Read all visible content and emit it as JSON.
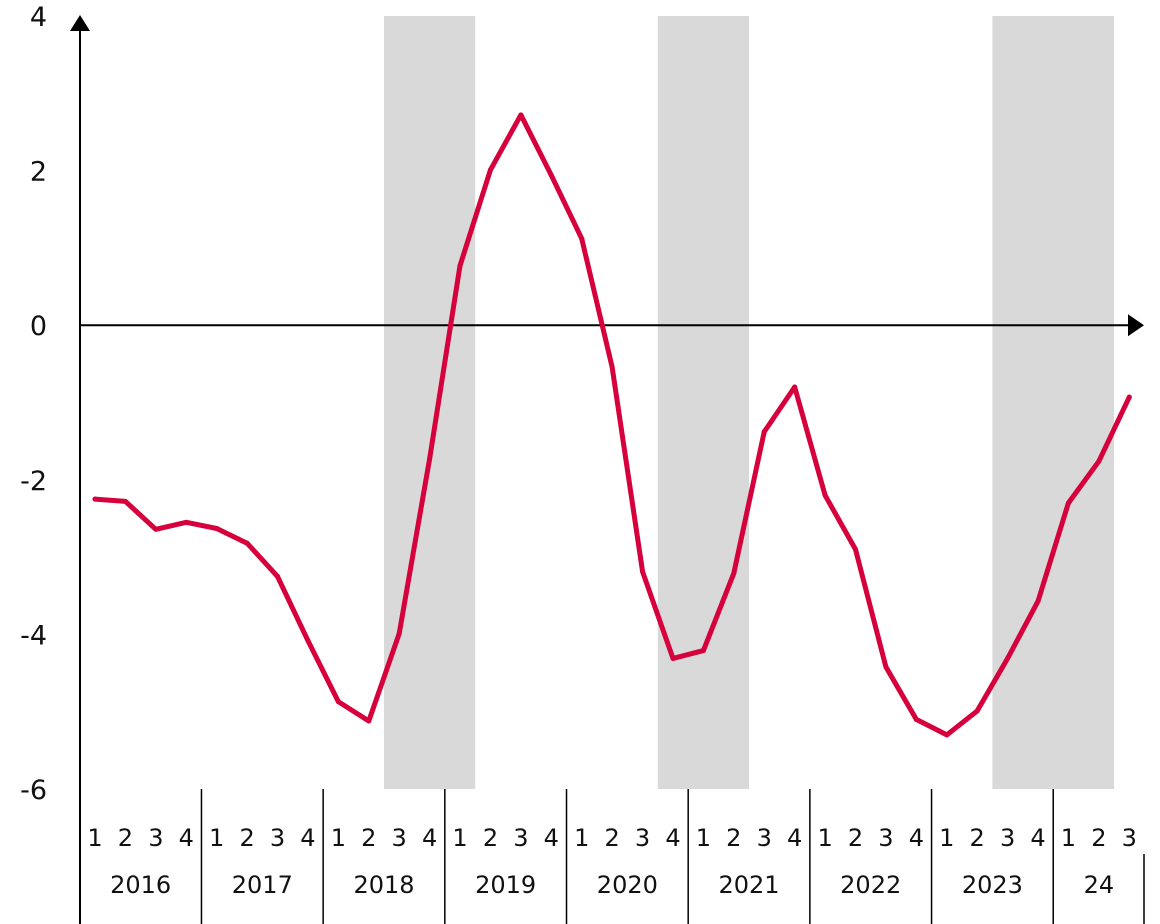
{
  "chart_data": {
    "type": "line",
    "title": "",
    "xlabel": "",
    "ylabel": "",
    "ylim": [
      -6,
      4
    ],
    "yticks": [
      {
        "value": 4,
        "label": "4"
      },
      {
        "value": 2,
        "label": "2"
      },
      {
        "value": 0,
        "label": "0"
      },
      {
        "value": -2,
        "label": "-2"
      },
      {
        "value": -4,
        "label": "-4"
      },
      {
        "value": -6,
        "label": "-6"
      }
    ],
    "years": [
      {
        "label": "2016",
        "quarters": [
          "1",
          "2",
          "3",
          "4"
        ]
      },
      {
        "label": "2017",
        "quarters": [
          "1",
          "2",
          "3",
          "4"
        ]
      },
      {
        "label": "2018",
        "quarters": [
          "1",
          "2",
          "3",
          "4"
        ]
      },
      {
        "label": "2019",
        "quarters": [
          "1",
          "2",
          "3",
          "4"
        ]
      },
      {
        "label": "2020",
        "quarters": [
          "1",
          "2",
          "3",
          "4"
        ]
      },
      {
        "label": "2021",
        "quarters": [
          "1",
          "2",
          "3",
          "4"
        ]
      },
      {
        "label": "2022",
        "quarters": [
          "1",
          "2",
          "3",
          "4"
        ]
      },
      {
        "label": "2023",
        "quarters": [
          "1",
          "2",
          "3",
          "4"
        ]
      },
      {
        "label": "24",
        "quarters": [
          "1",
          "2",
          "3"
        ]
      }
    ],
    "shaded_years": [
      "2018 Q3 – 2019 Q2",
      "2020 Q4 – 2021 Q3",
      "2023 Q3 – 2024 Q3"
    ],
    "shaded_ranges": [
      [
        10,
        13
      ],
      [
        19,
        22
      ],
      [
        30,
        34
      ]
    ],
    "line_color": "#d6003c",
    "shade_color": "#d9d9d9",
    "series": [
      {
        "values": [
          -2.25,
          -2.28,
          -2.64,
          -2.55,
          -2.63,
          -2.82,
          -3.25,
          -4.08,
          -4.87,
          -5.12,
          -3.99,
          -1.73,
          0.77,
          2.01,
          2.72,
          1.94,
          1.12,
          -0.54,
          -3.19,
          -4.31,
          -4.21,
          -3.21,
          -1.38,
          -0.8,
          -2.2,
          -2.9,
          -4.42,
          -5.1,
          -5.3,
          -4.99,
          -4.31,
          -3.57,
          -2.3,
          -1.76,
          -0.93
        ]
      }
    ]
  }
}
